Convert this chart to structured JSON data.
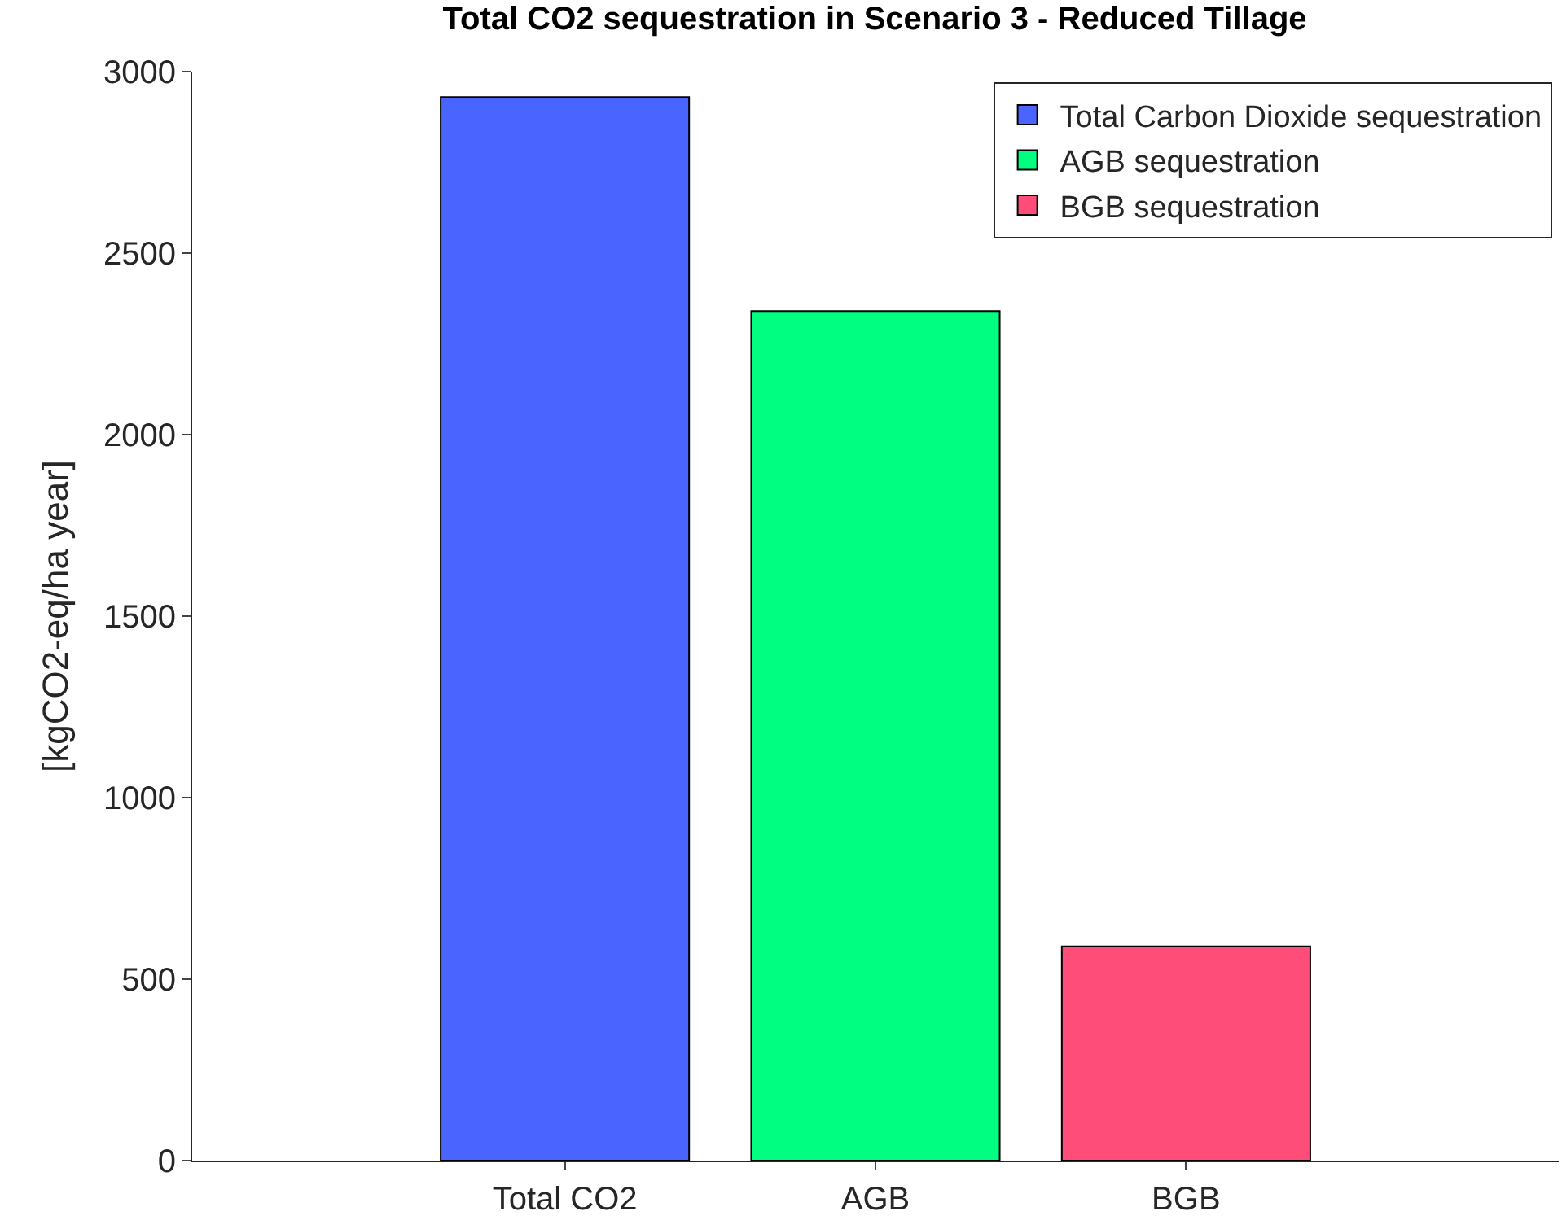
{
  "chart_data": {
    "type": "bar",
    "title": "Total CO2 sequestration in Scenario 3 - Reduced Tillage",
    "ylabel": "[kgCO2-eq/ha year]",
    "categories": [
      "Total CO2",
      "AGB",
      "BGB"
    ],
    "series": [
      {
        "name": "Total Carbon Dioxide sequestration",
        "color": "#4a64ff",
        "values": [
          2930,
          null,
          null
        ]
      },
      {
        "name": "AGB sequestration",
        "color": "#00ff80",
        "values": [
          null,
          2340,
          null
        ]
      },
      {
        "name": "BGB sequestration",
        "color": "#ff4d7a",
        "values": [
          null,
          null,
          590
        ]
      }
    ],
    "ylim": [
      0,
      3000
    ],
    "yticks": [
      0,
      500,
      1000,
      1500,
      2000,
      2500,
      3000
    ],
    "legend": "top right"
  }
}
